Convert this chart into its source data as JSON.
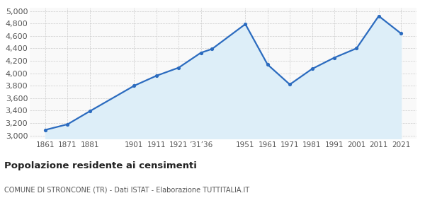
{
  "years": [
    1861,
    1871,
    1881,
    1901,
    1911,
    1921,
    1931,
    1936,
    1951,
    1961,
    1971,
    1981,
    1991,
    2001,
    2011,
    2021
  ],
  "population": [
    3090,
    3180,
    3390,
    3800,
    3960,
    4090,
    4330,
    4390,
    4790,
    4140,
    3820,
    4070,
    4250,
    4400,
    4920,
    4640
  ],
  "line_color": "#2b6bbf",
  "fill_color": "#ddeef8",
  "marker_color": "#2b6bbf",
  "grid_color": "#cccccc",
  "bg_color": "#f9f9f9",
  "title": "Popolazione residente ai censimenti",
  "subtitle": "COMUNE DI STRONCONE (TR) - Dati ISTAT - Elaborazione TUTTITALIA.IT",
  "ylim": [
    2950,
    5050
  ],
  "yticks": [
    3000,
    3200,
    3400,
    3600,
    3800,
    4000,
    4200,
    4400,
    4600,
    4800,
    5000
  ],
  "xlim": [
    1854,
    2028
  ],
  "x_tick_positions": [
    1861,
    1871,
    1881,
    1901,
    1911,
    1921,
    1931,
    1951,
    1961,
    1971,
    1981,
    1991,
    2001,
    2011,
    2021
  ],
  "x_tick_labels": [
    "1861",
    "1871",
    "1881",
    "1901",
    "1911",
    "1921",
    "’31’36",
    "1951",
    "1961",
    "1971",
    "1981",
    "1991",
    "2001",
    "2011",
    "2021"
  ]
}
